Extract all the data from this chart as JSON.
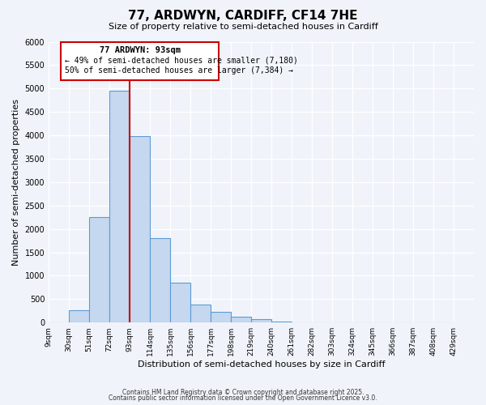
{
  "title": "77, ARDWYN, CARDIFF, CF14 7HE",
  "subtitle": "Size of property relative to semi-detached houses in Cardiff",
  "xlabel": "Distribution of semi-detached houses by size in Cardiff",
  "ylabel": "Number of semi-detached properties",
  "bin_labels": [
    "9sqm",
    "30sqm",
    "51sqm",
    "72sqm",
    "93sqm",
    "114sqm",
    "135sqm",
    "156sqm",
    "177sqm",
    "198sqm",
    "219sqm",
    "240sqm",
    "261sqm",
    "282sqm",
    "303sqm",
    "324sqm",
    "345sqm",
    "366sqm",
    "387sqm",
    "408sqm",
    "429sqm"
  ],
  "bin_values": [
    0,
    270,
    2250,
    4950,
    3980,
    1800,
    850,
    390,
    220,
    120,
    80,
    20,
    5,
    0,
    0,
    0,
    0,
    0,
    0,
    0
  ],
  "property_label": "77 ARDWYN: 93sqm",
  "annotation_line1": "← 49% of semi-detached houses are smaller (7,180)",
  "annotation_line2": "50% of semi-detached houses are larger (7,384) →",
  "bar_color": "#c5d8f0",
  "bar_edge_color": "#5b9bd5",
  "line_color": "#cc0000",
  "box_edge_color": "#cc0000",
  "ylim": [
    0,
    6000
  ],
  "yticks": [
    0,
    500,
    1000,
    1500,
    2000,
    2500,
    3000,
    3500,
    4000,
    4500,
    5000,
    5500,
    6000
  ],
  "footer1": "Contains HM Land Registry data © Crown copyright and database right 2025.",
  "footer2": "Contains public sector information licensed under the Open Government Licence v3.0.",
  "bg_color": "#f0f4fa"
}
